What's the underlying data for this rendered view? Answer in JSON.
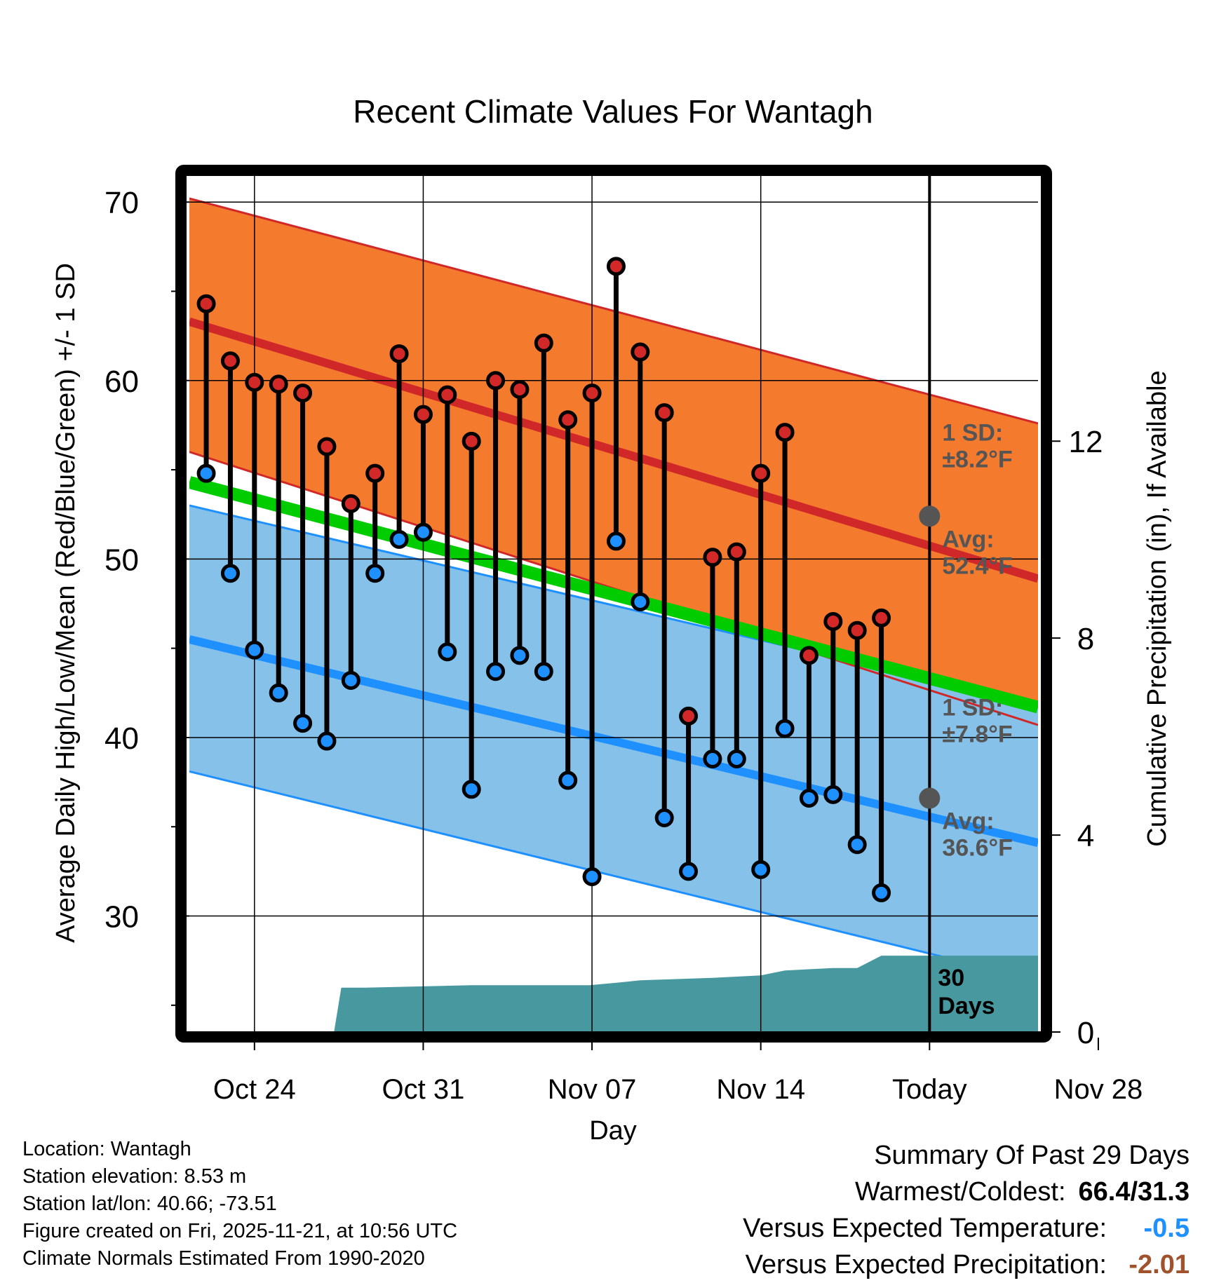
{
  "title": "Recent Climate Values For Wantagh",
  "chart_data": {
    "type": "line",
    "title": "Recent Climate Values For Wantagh",
    "xlabel": "Day",
    "ylabel": "Average Daily High/Low/Mean (Red/Blue/Green) +/- 1 SD",
    "y2label": "Cumulative Precipitation (in), If Available",
    "xlim": [
      -2.7,
      32.5
    ],
    "ylim": [
      23.5,
      71.5
    ],
    "y2lim": [
      0,
      17.4
    ],
    "x_ticks": [
      {
        "x": 0,
        "label": "Oct 24"
      },
      {
        "x": 7,
        "label": "Oct 31"
      },
      {
        "x": 14,
        "label": "Nov 07"
      },
      {
        "x": 21,
        "label": "Nov 14"
      },
      {
        "x": 28,
        "label": "Today"
      },
      {
        "x": 35,
        "label": "Nov 28"
      }
    ],
    "y_ticks": [
      30,
      40,
      50,
      60,
      70
    ],
    "y2_ticks": [
      0,
      4,
      8,
      12
    ],
    "today_x": 28,
    "normals": {
      "x": [
        -2.7,
        32.5
      ],
      "high_mean": [
        63.3,
        48.9
      ],
      "high_upper": [
        70.2,
        57.6
      ],
      "high_lower": [
        56.0,
        40.7
      ],
      "low_mean": [
        45.5,
        34.1
      ],
      "low_upper": [
        53.0,
        41.8
      ],
      "low_lower": [
        38.1,
        26.4
      ],
      "mean": [
        54.3,
        41.7
      ]
    },
    "observed": {
      "x": [
        -2,
        -1,
        0,
        1,
        2,
        3,
        4,
        5,
        6,
        7,
        8,
        9,
        10,
        11,
        12,
        13,
        14,
        15,
        16,
        17,
        18,
        19,
        20,
        21,
        22,
        23,
        24,
        25,
        26,
        27
      ],
      "high": [
        64.3,
        61.1,
        59.9,
        59.8,
        59.3,
        56.3,
        53.1,
        54.8,
        61.5,
        58.1,
        59.2,
        56.6,
        60.0,
        59.5,
        62.1,
        57.8,
        59.3,
        66.4,
        61.6,
        58.2,
        41.2,
        50.1,
        50.4,
        54.8,
        57.1,
        44.6,
        46.5,
        46.0,
        46.7,
        null
      ],
      "low": [
        54.8,
        49.2,
        44.9,
        42.5,
        40.8,
        39.8,
        43.2,
        49.2,
        51.1,
        51.5,
        44.8,
        37.1,
        43.7,
        44.6,
        43.7,
        37.6,
        32.2,
        51.0,
        47.6,
        35.5,
        32.5,
        38.8,
        38.8,
        32.6,
        40.5,
        36.6,
        36.8,
        34.0,
        31.3,
        null
      ]
    },
    "precip": {
      "x": [
        3.3,
        3.6,
        4.6,
        9,
        13.9,
        15,
        16,
        19,
        21,
        22,
        24,
        25,
        26,
        32.5
      ],
      "values": [
        0,
        0.9,
        0.9,
        0.95,
        0.95,
        1.0,
        1.05,
        1.1,
        1.15,
        1.25,
        1.3,
        1.3,
        1.55,
        1.55
      ]
    },
    "colors": {
      "high_band": "#f47a2e",
      "high_band_edge": "#d02828",
      "high_mean": "#d02828",
      "low_band": "#85c1e9",
      "low_band_edge": "#1e90ff",
      "low_mean": "#1e90ff",
      "mean": "#00cc00",
      "precip": "#48989f",
      "high_dot": "#d32828",
      "low_dot": "#1e90ff",
      "label": "#555555"
    },
    "annotations": {
      "high_sd_title": "1 SD:",
      "high_sd_value": "±8.2°F",
      "high_avg_title": "Avg:",
      "high_avg_value": "52.4°F",
      "high_avg": 52.4,
      "low_sd_title": "1 SD:",
      "low_sd_value": "±7.8°F",
      "low_avg_title": "Avg:",
      "low_avg_value": "36.6°F",
      "low_avg": 36.6,
      "days_line1": "30",
      "days_line2": "Days"
    }
  },
  "footer": {
    "location": "Location: Wantagh",
    "elevation": "Station elevation: 8.53 m",
    "latlon": "Station lat/lon: 40.66; -73.51",
    "created": "Figure created on Fri, 2025-11-21, at 10:56 UTC",
    "normals": "Climate Normals Estimated From 1990-2020"
  },
  "summary": {
    "heading": "Summary Of Past 29 Days",
    "warmest_label": "Warmest/Coldest:",
    "warmest_value": "66.4/31.3",
    "temp_label": "Versus Expected Temperature:",
    "temp_value": "-0.5",
    "precip_label": "Versus Expected Precipitation:",
    "precip_value": "-2.01"
  }
}
